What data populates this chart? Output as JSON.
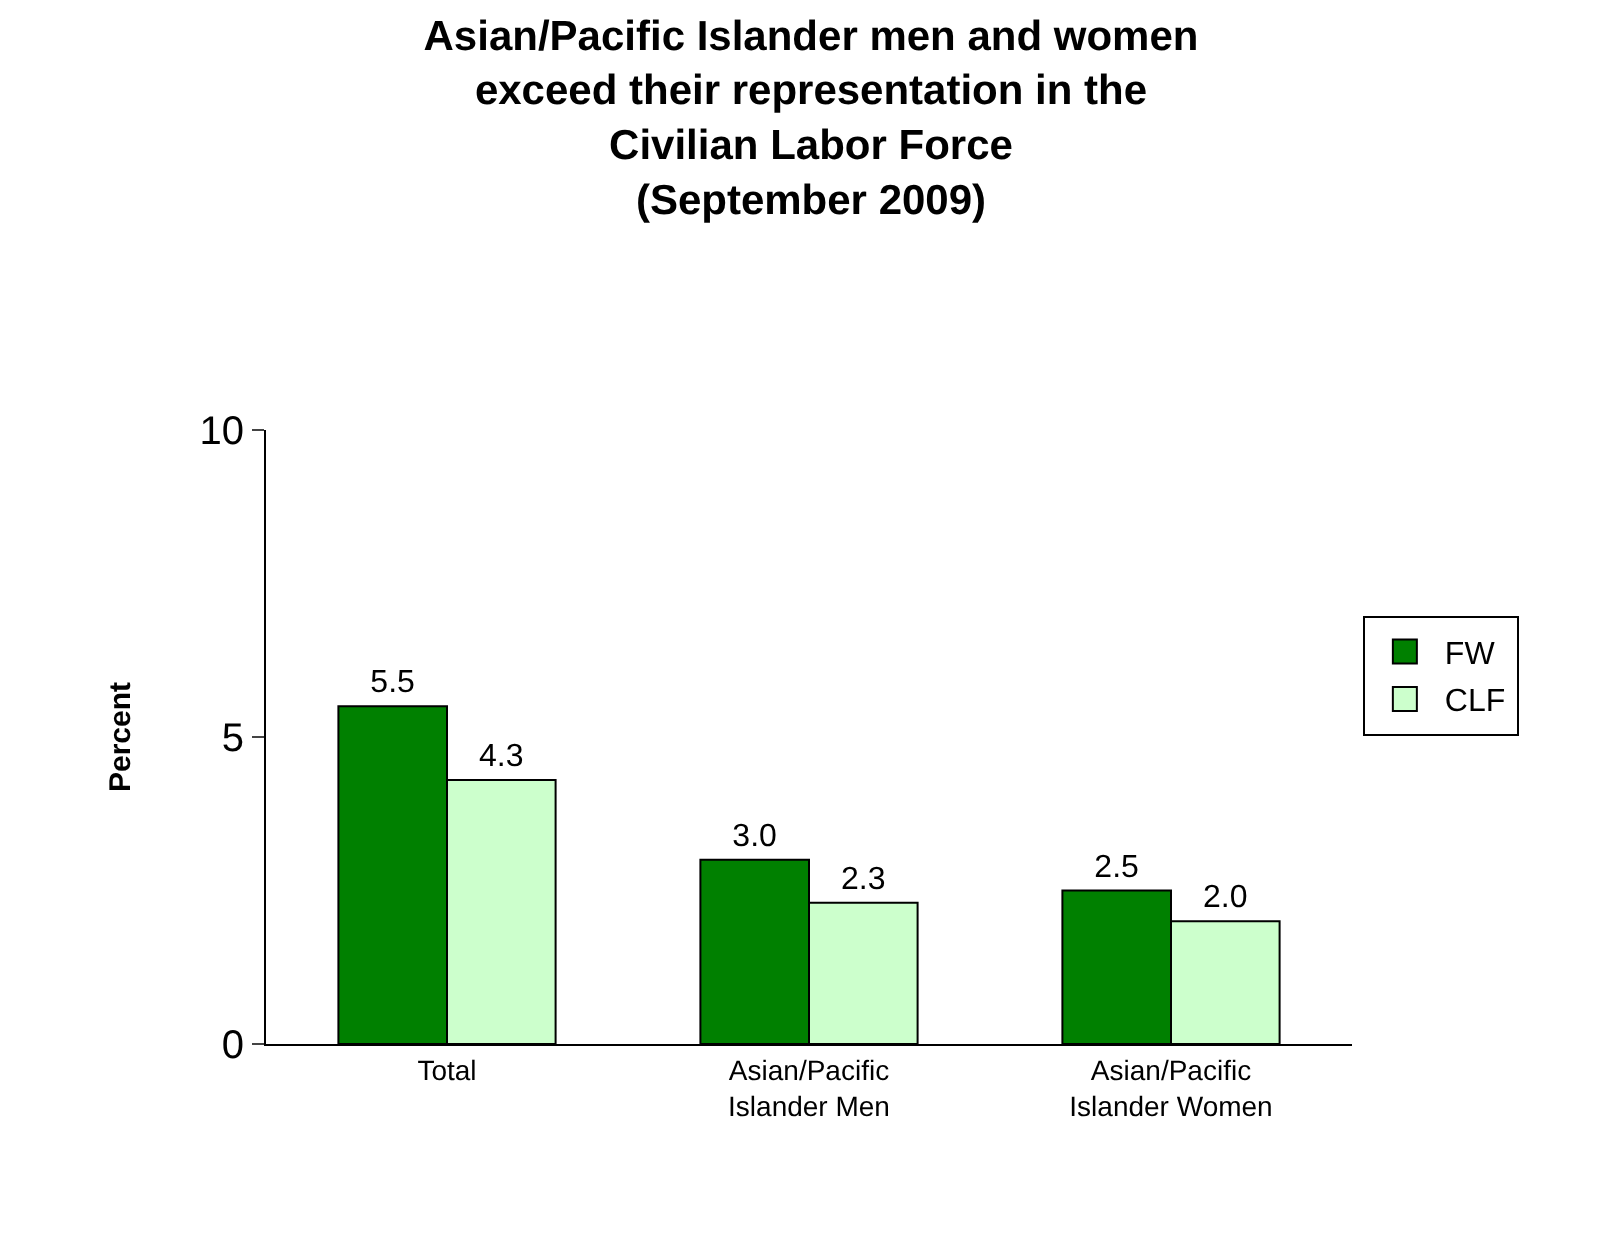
{
  "chart_data": {
    "type": "bar",
    "title": "Asian/Pacific Islander men and women\nexceed their representation in the\nCivilian Labor Force\n(September 2009)",
    "ylabel": "Percent",
    "categories": [
      "Total",
      "Asian/Pacific Islander Men",
      "Asian/Pacific Islander Women"
    ],
    "series": [
      {
        "name": "FW",
        "color": "#008000",
        "values": [
          5.5,
          3.0,
          2.5
        ],
        "value_labels": [
          "5.5",
          "3.0",
          "2.5"
        ]
      },
      {
        "name": "CLF",
        "color": "#ccffcc",
        "values": [
          4.3,
          2.3,
          2.0
        ],
        "value_labels": [
          "4.3",
          "2.3",
          "2.0"
        ]
      }
    ],
    "ylim": [
      0,
      10
    ],
    "yticks": [
      0,
      5,
      10
    ],
    "legend": "right"
  }
}
